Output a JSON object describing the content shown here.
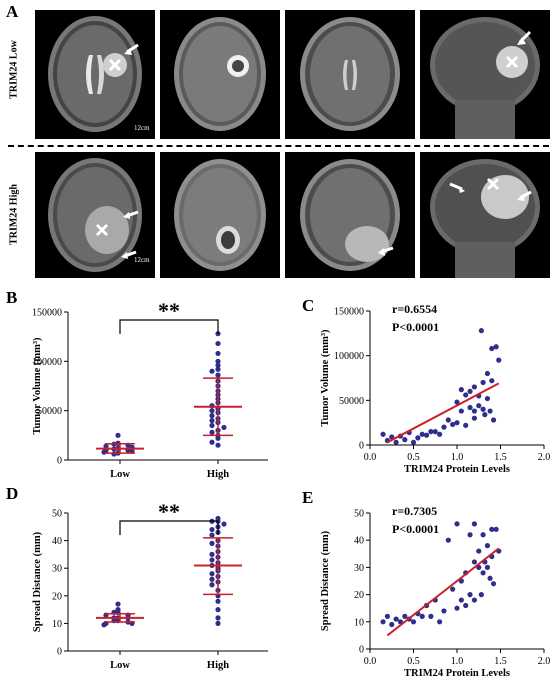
{
  "panel_letters": {
    "a": "A",
    "b": "B",
    "c": "C",
    "d": "D",
    "e": "E"
  },
  "mri": {
    "row1_label": "TRIM24 Low",
    "row2_label": "TRIM24 High",
    "scale_label_1": "12cm",
    "scale_label_2": "12cm"
  },
  "colors": {
    "point": "#2e2f8a",
    "line": "#cc1f2a",
    "brain_bg": "#000000"
  },
  "chart_data": [
    {
      "id": "B",
      "type": "scatter",
      "title": "",
      "ylabel": "Tumor Volume (mm³)",
      "ylim": [
        0,
        150000
      ],
      "yticks": [
        "0",
        "50000",
        "100000",
        "150000"
      ],
      "categories": [
        "Low",
        "High"
      ],
      "significance": "**",
      "groups": [
        {
          "name": "Low",
          "mean": 11500,
          "sd_low": 7000,
          "sd_high": 16500,
          "values": [
            25000,
            17000,
            16000,
            15000,
            14000,
            13000,
            12000,
            11000,
            10000,
            9500,
            9000,
            8000,
            7000,
            6000
          ]
        },
        {
          "name": "High",
          "mean": 54000,
          "sd_low": 25000,
          "sd_high": 83000,
          "values": [
            128000,
            118000,
            108000,
            100000,
            96000,
            92000,
            90000,
            86000,
            80000,
            75000,
            70000,
            66000,
            62000,
            58000,
            55000,
            52000,
            50000,
            48000,
            45000,
            42000,
            40000,
            38000,
            35000,
            33000,
            30000,
            28000,
            25000,
            22000,
            18000,
            15000
          ]
        }
      ]
    },
    {
      "id": "C",
      "type": "scatter",
      "title": "",
      "xlabel": "TRIM24 Protein Levels",
      "ylabel": "Tumor Volume (mm³)",
      "xlim": [
        0,
        2.0
      ],
      "ylim": [
        0,
        150000
      ],
      "xticks": [
        "0.0",
        "0.5",
        "1.0",
        "1.5",
        "2.0"
      ],
      "yticks": [
        "0",
        "50000",
        "100000",
        "150000"
      ],
      "annotation_r": "r=0.6554",
      "annotation_p": "P<0.0001",
      "fit": {
        "x": [
          0.2,
          1.48
        ],
        "y": [
          3000,
          69000
        ]
      },
      "x": [
        0.15,
        0.2,
        0.25,
        0.3,
        0.35,
        0.4,
        0.45,
        0.5,
        0.55,
        0.6,
        0.65,
        0.7,
        0.75,
        0.8,
        0.85,
        0.9,
        0.95,
        1.0,
        1.0,
        1.05,
        1.05,
        1.1,
        1.1,
        1.15,
        1.15,
        1.2,
        1.2,
        1.2,
        1.25,
        1.25,
        1.28,
        1.3,
        1.3,
        1.32,
        1.35,
        1.35,
        1.38,
        1.4,
        1.4,
        1.42,
        1.45,
        1.48
      ],
      "y": [
        12000,
        5000,
        9000,
        3000,
        10000,
        6000,
        14000,
        3000,
        8000,
        12000,
        11000,
        15000,
        15000,
        12000,
        20000,
        28000,
        23000,
        25000,
        48000,
        62000,
        38000,
        56000,
        22000,
        60000,
        42000,
        65000,
        38000,
        30000,
        55000,
        44000,
        128000,
        70000,
        40000,
        34000,
        80000,
        52000,
        38000,
        108000,
        72000,
        28000,
        110000,
        95000
      ]
    },
    {
      "id": "D",
      "type": "scatter",
      "title": "",
      "ylabel": "Spread Distance (mm)",
      "ylim": [
        0,
        50
      ],
      "yticks": [
        "0",
        "10",
        "20",
        "30",
        "40",
        "50"
      ],
      "categories": [
        "Low",
        "High"
      ],
      "significance": "**",
      "groups": [
        {
          "name": "Low",
          "mean": 12,
          "sd_low": 10.5,
          "sd_high": 13.5,
          "values": [
            17,
            15,
            14,
            14,
            13,
            13,
            12,
            12,
            12,
            11,
            11,
            10.5,
            10,
            10,
            9.5
          ]
        },
        {
          "name": "High",
          "mean": 31,
          "sd_low": 20.5,
          "sd_high": 41,
          "values": [
            48,
            47,
            47,
            46,
            45,
            44,
            43,
            42,
            40,
            39,
            38,
            36,
            35,
            34,
            33,
            32,
            31,
            30,
            29,
            28,
            27,
            26,
            25,
            24,
            22,
            20,
            18,
            15,
            12,
            10
          ]
        }
      ]
    },
    {
      "id": "E",
      "type": "scatter",
      "title": "",
      "xlabel": "TRIM24 Protein Levels",
      "ylabel": "Spread Distance (mm)",
      "xlim": [
        0,
        2.0
      ],
      "ylim": [
        0,
        50
      ],
      "xticks": [
        "0.0",
        "0.5",
        "1.0",
        "1.5",
        "2.0"
      ],
      "yticks": [
        "0",
        "10",
        "20",
        "30",
        "40",
        "50"
      ],
      "annotation_r": "r=0.7305",
      "annotation_p": "P<0.0001",
      "fit": {
        "x": [
          0.2,
          1.48
        ],
        "y": [
          5,
          37
        ]
      },
      "x": [
        0.15,
        0.2,
        0.25,
        0.3,
        0.35,
        0.4,
        0.45,
        0.5,
        0.55,
        0.6,
        0.65,
        0.7,
        0.75,
        0.8,
        0.85,
        0.9,
        0.95,
        1.0,
        1.0,
        1.05,
        1.05,
        1.1,
        1.1,
        1.15,
        1.15,
        1.2,
        1.2,
        1.2,
        1.25,
        1.25,
        1.28,
        1.3,
        1.3,
        1.32,
        1.35,
        1.35,
        1.38,
        1.4,
        1.4,
        1.42,
        1.45,
        1.48
      ],
      "y": [
        10,
        12,
        9,
        11,
        10,
        12,
        11,
        10,
        13,
        12,
        16,
        12,
        18,
        10,
        14,
        40,
        22,
        15,
        46,
        18,
        25,
        28,
        16,
        42,
        20,
        46,
        32,
        18,
        36,
        30,
        20,
        42,
        28,
        32,
        38,
        30,
        26,
        44,
        34,
        24,
        44,
        36
      ]
    }
  ]
}
